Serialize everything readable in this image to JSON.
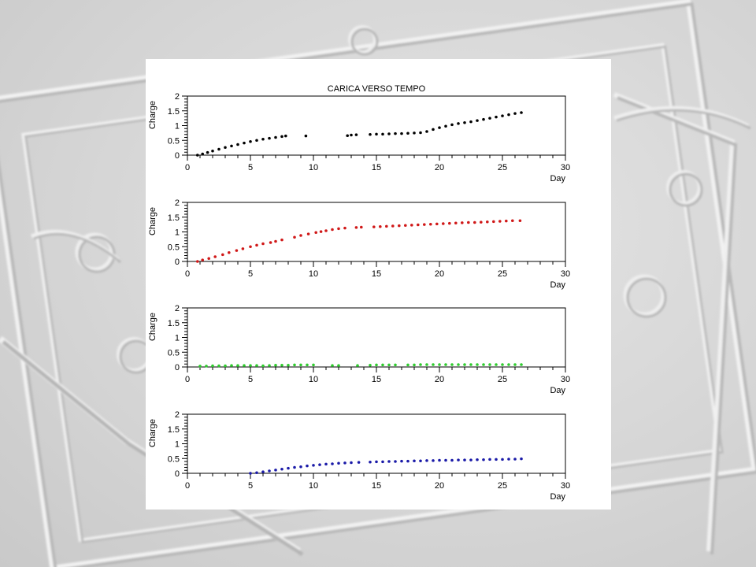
{
  "figure": {
    "title": "CARICA VERSO TEMPO"
  },
  "colors": {
    "panel1": "#000000",
    "panel2": "#d01818",
    "panel3": "#2ecc2e",
    "panel4": "#1a1aa8"
  },
  "chart_data": [
    {
      "type": "scatter",
      "title": "CARICA VERSO TEMPO",
      "xlabel": "Day",
      "ylabel": "Charge",
      "xlim": [
        0,
        30
      ],
      "ylim": [
        0,
        2
      ],
      "xticks": [
        0,
        5,
        10,
        15,
        20,
        25,
        30
      ],
      "yticks": [
        0,
        0.5,
        1,
        1.5,
        2
      ],
      "color": "#000000",
      "x": [
        0.8,
        1.2,
        1.6,
        2.0,
        2.5,
        3.0,
        3.5,
        4.0,
        4.5,
        5.0,
        5.5,
        6.0,
        6.5,
        7.0,
        7.5,
        7.8,
        9.4,
        12.7,
        13.0,
        13.4,
        14.5,
        15.0,
        15.5,
        16.0,
        16.5,
        17.0,
        17.5,
        18.0,
        18.5,
        19.0,
        19.5,
        20.0,
        20.5,
        21.0,
        21.5,
        22.0,
        22.5,
        23.0,
        23.5,
        24.0,
        24.5,
        25.0,
        25.5,
        26.0,
        26.5
      ],
      "y": [
        0.0,
        0.04,
        0.09,
        0.14,
        0.2,
        0.26,
        0.31,
        0.36,
        0.41,
        0.46,
        0.5,
        0.54,
        0.57,
        0.6,
        0.63,
        0.65,
        0.65,
        0.66,
        0.68,
        0.69,
        0.7,
        0.71,
        0.71,
        0.72,
        0.73,
        0.73,
        0.74,
        0.75,
        0.76,
        0.8,
        0.87,
        0.93,
        0.98,
        1.03,
        1.07,
        1.1,
        1.13,
        1.17,
        1.21,
        1.25,
        1.29,
        1.33,
        1.37,
        1.41,
        1.44
      ]
    },
    {
      "type": "scatter",
      "title": "",
      "xlabel": "Day",
      "ylabel": "Charge",
      "xlim": [
        0,
        30
      ],
      "ylim": [
        0,
        2
      ],
      "xticks": [
        0,
        5,
        10,
        15,
        20,
        25,
        30
      ],
      "yticks": [
        0,
        0.5,
        1,
        1.5,
        2
      ],
      "color": "#d01818",
      "x": [
        0.8,
        1.2,
        1.7,
        2.2,
        2.8,
        3.3,
        3.9,
        4.4,
        5.0,
        5.5,
        6.0,
        6.6,
        7.0,
        7.5,
        8.5,
        9.0,
        9.6,
        10.2,
        10.6,
        11.0,
        11.5,
        12.0,
        12.5,
        13.4,
        13.8,
        14.8,
        15.3,
        15.8,
        16.3,
        16.8,
        17.3,
        17.8,
        18.3,
        18.8,
        19.3,
        19.8,
        20.3,
        20.8,
        21.3,
        21.8,
        22.3,
        22.8,
        23.3,
        23.8,
        24.3,
        24.8,
        25.3,
        25.8,
        26.4
      ],
      "y": [
        0.0,
        0.05,
        0.1,
        0.16,
        0.23,
        0.3,
        0.37,
        0.43,
        0.5,
        0.55,
        0.6,
        0.64,
        0.68,
        0.73,
        0.82,
        0.88,
        0.93,
        0.98,
        1.01,
        1.04,
        1.08,
        1.11,
        1.13,
        1.15,
        1.16,
        1.17,
        1.18,
        1.19,
        1.2,
        1.21,
        1.22,
        1.23,
        1.24,
        1.25,
        1.26,
        1.27,
        1.28,
        1.29,
        1.3,
        1.31,
        1.32,
        1.32,
        1.33,
        1.34,
        1.35,
        1.36,
        1.37,
        1.38,
        1.38
      ]
    },
    {
      "type": "scatter",
      "title": "",
      "xlabel": "Day",
      "ylabel": "Charge",
      "xlim": [
        0,
        30
      ],
      "ylim": [
        0,
        2
      ],
      "xticks": [
        0,
        5,
        10,
        15,
        20,
        25,
        30
      ],
      "yticks": [
        0,
        0.5,
        1,
        1.5,
        2
      ],
      "color": "#2ecc2e",
      "x": [
        1.0,
        1.5,
        2.0,
        2.5,
        3.0,
        3.5,
        4.0,
        4.5,
        5.0,
        5.5,
        6.0,
        6.5,
        7.0,
        7.5,
        8.0,
        8.5,
        9.0,
        9.5,
        10.0,
        11.5,
        12.0,
        13.5,
        14.5,
        15.0,
        15.5,
        16.0,
        16.5,
        17.5,
        18.0,
        18.5,
        19.0,
        19.5,
        20.0,
        20.5,
        21.0,
        21.5,
        22.0,
        22.5,
        23.0,
        23.5,
        24.0,
        24.5,
        25.0,
        25.5,
        26.0,
        26.5
      ],
      "y": [
        0.03,
        0.03,
        0.04,
        0.04,
        0.04,
        0.05,
        0.05,
        0.05,
        0.05,
        0.05,
        0.04,
        0.05,
        0.06,
        0.06,
        0.06,
        0.07,
        0.07,
        0.07,
        0.07,
        0.05,
        0.05,
        0.05,
        0.06,
        0.07,
        0.07,
        0.07,
        0.07,
        0.07,
        0.07,
        0.08,
        0.08,
        0.08,
        0.08,
        0.08,
        0.08,
        0.08,
        0.08,
        0.08,
        0.08,
        0.08,
        0.08,
        0.08,
        0.08,
        0.08,
        0.08,
        0.08
      ]
    },
    {
      "type": "scatter",
      "title": "",
      "xlabel": "Day",
      "ylabel": "Charge",
      "xlim": [
        0,
        30
      ],
      "ylim": [
        0,
        2
      ],
      "xticks": [
        0,
        5,
        10,
        15,
        20,
        25,
        30
      ],
      "yticks": [
        0,
        0.5,
        1,
        1.5,
        2
      ],
      "color": "#1a1aa8",
      "x": [
        5.0,
        5.5,
        6.0,
        6.5,
        7.0,
        7.5,
        8.0,
        8.5,
        9.0,
        9.5,
        10.0,
        10.5,
        11.0,
        11.5,
        12.0,
        12.5,
        13.0,
        13.6,
        14.5,
        15.0,
        15.5,
        16.0,
        16.5,
        17.0,
        17.5,
        18.0,
        18.5,
        19.0,
        19.5,
        20.0,
        20.5,
        21.0,
        21.5,
        22.0,
        22.5,
        23.0,
        23.5,
        24.0,
        24.5,
        25.0,
        25.5,
        26.0,
        26.5
      ],
      "y": [
        0.0,
        0.02,
        0.05,
        0.08,
        0.11,
        0.14,
        0.17,
        0.2,
        0.22,
        0.25,
        0.27,
        0.29,
        0.31,
        0.32,
        0.34,
        0.35,
        0.36,
        0.37,
        0.38,
        0.39,
        0.39,
        0.4,
        0.4,
        0.41,
        0.41,
        0.42,
        0.42,
        0.43,
        0.43,
        0.44,
        0.44,
        0.44,
        0.45,
        0.45,
        0.45,
        0.46,
        0.46,
        0.47,
        0.47,
        0.47,
        0.48,
        0.48,
        0.49
      ]
    }
  ]
}
